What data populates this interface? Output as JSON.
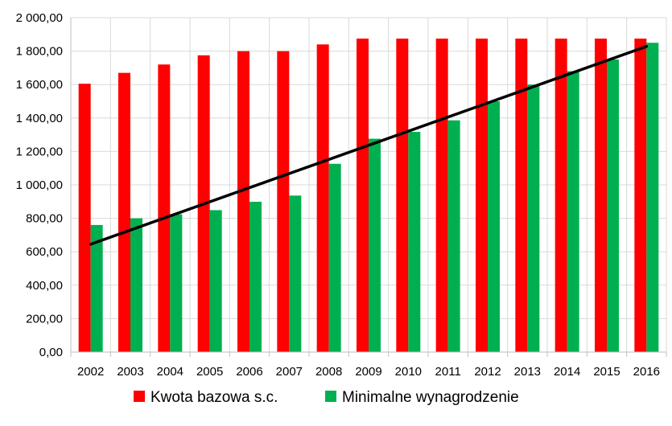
{
  "chart_data": {
    "type": "bar",
    "categories": [
      "2002",
      "2003",
      "2004",
      "2005",
      "2006",
      "2007",
      "2008",
      "2009",
      "2010",
      "2011",
      "2012",
      "2013",
      "2014",
      "2015",
      "2016"
    ],
    "series": [
      {
        "name": "Kwota bazowa s.c.",
        "color": "#ff0000",
        "values": [
          1605,
          1670,
          1720,
          1775,
          1800,
          1800,
          1840,
          1875,
          1875,
          1875,
          1875,
          1875,
          1875,
          1875,
          1875
        ]
      },
      {
        "name": "Minimalne wynagrodzenie",
        "color": "#00b050",
        "values": [
          760,
          800,
          824,
          849,
          899,
          936,
          1126,
          1276,
          1317,
          1386,
          1500,
          1600,
          1680,
          1750,
          1850
        ]
      }
    ],
    "trendline": {
      "type": "linear",
      "color": "#000000",
      "start": 645,
      "end": 1828
    },
    "ylim": [
      0,
      2000
    ],
    "ytick_step": 200,
    "ytick_labels": [
      "0,00",
      "200,00",
      "400,00",
      "600,00",
      "800,00",
      "1 000,00",
      "1 200,00",
      "1 400,00",
      "1 600,00",
      "1 800,00",
      "2 000,00"
    ],
    "grid": true,
    "legend_position": "bottom",
    "title": "",
    "xlabel": "",
    "ylabel": ""
  }
}
